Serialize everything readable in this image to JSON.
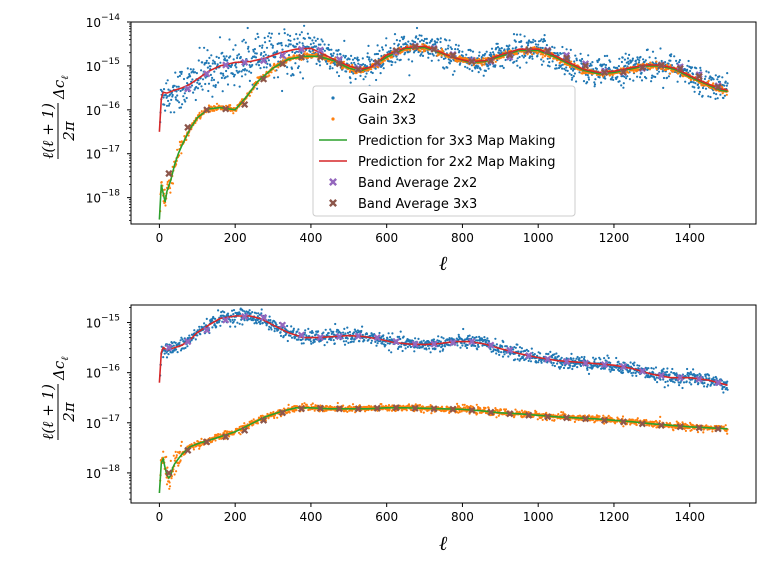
{
  "chart_data": [
    {
      "type": "scatter",
      "panel": "top",
      "xlabel": "ℓ",
      "ylabel": "ℓ(ℓ+1)/2π Δc_ℓ",
      "xlim": [
        -75,
        1575
      ],
      "ylim_log10": [
        -18.6,
        -14
      ],
      "xticks": [
        0,
        200,
        400,
        600,
        800,
        1000,
        1200,
        1400
      ],
      "xtick_labels": [
        "0",
        "200",
        "400",
        "600",
        "800",
        "1000",
        "1200",
        "1400"
      ],
      "yticks_log10": [
        -18,
        -17,
        -16,
        -15,
        -14
      ],
      "ytick_labels": [
        "10",
        "10",
        "10",
        "10",
        "10"
      ],
      "ytick_exponents": [
        "−18",
        "−17",
        "−16",
        "−15",
        "−14"
      ],
      "legend": {
        "position": "center",
        "entries": [
          {
            "label": "Gain 2x2",
            "marker": "dot",
            "color": "#1f77b4"
          },
          {
            "label": "Gain 3x3",
            "marker": "dot",
            "color": "#ff7f0e"
          },
          {
            "label": "Prediction for 3x3 Map Making",
            "marker": "line",
            "color": "#2ca02c"
          },
          {
            "label": "Prediction for 2x2 Map Making",
            "marker": "line",
            "color": "#d62728"
          },
          {
            "label": "Band Average 2x2",
            "marker": "x",
            "color": "#9467bd"
          },
          {
            "label": "Band Average 3x3",
            "marker": "x",
            "color": "#8c564b"
          }
        ]
      },
      "series": [
        {
          "name": "Prediction for 2x2 Map Making",
          "color": "#d62728",
          "x": [
            0,
            5,
            10,
            20,
            40,
            60,
            80,
            100,
            130,
            160,
            200,
            240,
            280,
            320,
            360,
            400,
            430,
            460,
            500,
            530,
            560,
            600,
            650,
            700,
            740,
            780,
            820,
            860,
            900,
            950,
            1000,
            1040,
            1080,
            1120,
            1160,
            1200,
            1240,
            1280,
            1320,
            1360,
            1400,
            1440,
            1480,
            1500
          ],
          "log10y": [
            -16.5,
            -15.75,
            -15.6,
            -15.62,
            -15.55,
            -15.5,
            -15.42,
            -15.3,
            -15.12,
            -15.0,
            -14.92,
            -14.9,
            -14.82,
            -14.7,
            -14.62,
            -14.6,
            -14.72,
            -14.85,
            -15.0,
            -15.08,
            -15.02,
            -14.75,
            -14.58,
            -14.55,
            -14.68,
            -14.82,
            -14.9,
            -14.88,
            -14.75,
            -14.62,
            -14.62,
            -14.75,
            -14.92,
            -15.08,
            -15.15,
            -15.12,
            -15.05,
            -14.98,
            -14.98,
            -15.05,
            -15.22,
            -15.38,
            -15.52,
            -15.55
          ]
        },
        {
          "name": "Prediction for 3x3 Map Making",
          "color": "#2ca02c",
          "x": [
            0,
            5,
            10,
            15,
            20,
            30,
            40,
            50,
            60,
            80,
            100,
            130,
            160,
            200,
            230,
            260,
            300,
            340,
            380,
            420,
            460,
            500,
            530,
            560,
            600,
            650,
            700,
            740,
            780,
            820,
            860,
            900,
            950,
            1000,
            1040,
            1080,
            1120,
            1160,
            1200,
            1240,
            1280,
            1320,
            1360,
            1400,
            1440,
            1480,
            1500
          ],
          "log10y": [
            -18.5,
            -17.7,
            -17.9,
            -18.1,
            -17.85,
            -17.6,
            -17.25,
            -17.0,
            -16.8,
            -16.45,
            -16.18,
            -15.98,
            -15.95,
            -16.0,
            -15.7,
            -15.35,
            -15.05,
            -14.85,
            -14.78,
            -14.78,
            -14.88,
            -15.05,
            -15.12,
            -15.02,
            -14.8,
            -14.6,
            -14.58,
            -14.7,
            -14.82,
            -14.92,
            -14.9,
            -14.78,
            -14.65,
            -14.65,
            -14.78,
            -14.95,
            -15.1,
            -15.18,
            -15.15,
            -15.08,
            -15.0,
            -15.0,
            -15.08,
            -15.25,
            -15.4,
            -15.55,
            -15.58
          ]
        },
        {
          "name": "Band Average 2x2",
          "color": "#9467bd",
          "x": [
            75,
            125,
            175,
            225,
            275,
            325,
            375,
            425,
            475,
            525,
            575,
            625,
            675,
            725,
            775,
            825,
            875,
            925,
            975,
            1025,
            1075,
            1125,
            1175,
            1225,
            1275,
            1325,
            1375,
            1425,
            1475
          ],
          "log10y": [
            -15.52,
            -15.18,
            -14.98,
            -14.92,
            -14.88,
            -14.76,
            -14.62,
            -14.64,
            -14.85,
            -15.05,
            -14.95,
            -14.68,
            -14.55,
            -14.6,
            -14.74,
            -14.87,
            -14.9,
            -14.8,
            -14.65,
            -14.64,
            -14.76,
            -14.95,
            -15.12,
            -15.15,
            -15.06,
            -14.98,
            -15.02,
            -15.2,
            -15.45
          ]
        },
        {
          "name": "Band Average 3x3",
          "color": "#8c564b",
          "x": [
            25,
            75,
            125,
            175,
            225,
            275,
            325,
            375,
            425,
            475,
            525,
            575,
            625,
            675,
            725,
            775,
            825,
            875,
            925,
            975,
            1025,
            1075,
            1125,
            1175,
            1225,
            1275,
            1325,
            1375,
            1425,
            1475
          ],
          "log10y": [
            -17.45,
            -16.4,
            -16.0,
            -15.98,
            -15.88,
            -15.3,
            -14.95,
            -14.8,
            -14.8,
            -14.95,
            -15.08,
            -14.92,
            -14.65,
            -14.56,
            -14.62,
            -14.76,
            -14.9,
            -14.88,
            -14.75,
            -14.64,
            -14.66,
            -14.82,
            -15.0,
            -15.15,
            -15.14,
            -15.04,
            -14.99,
            -15.06,
            -15.24,
            -15.48
          ]
        },
        {
          "name": "Gain 2x2",
          "color": "#1f77b4",
          "note": "noisy scatter (~1500 pts) scattered about the 2x2 prediction"
        },
        {
          "name": "Gain 3x3",
          "color": "#ff7f0e",
          "note": "scatter (~1500 pts) tracking the 3x3 prediction"
        }
      ]
    },
    {
      "type": "scatter",
      "panel": "bottom",
      "xlabel": "ℓ",
      "ylabel": "ℓ(ℓ+1)/2π Δc_ℓ",
      "xlim": [
        -75,
        1575
      ],
      "ylim_log10": [
        -18.6,
        -14.65
      ],
      "xticks": [
        0,
        200,
        400,
        600,
        800,
        1000,
        1200,
        1400
      ],
      "xtick_labels": [
        "0",
        "200",
        "400",
        "600",
        "800",
        "1000",
        "1200",
        "1400"
      ],
      "yticks_log10": [
        -18,
        -17,
        -16,
        -15
      ],
      "ytick_labels": [
        "10",
        "10",
        "10",
        "10"
      ],
      "ytick_exponents": [
        "−18",
        "−17",
        "−16",
        "−15"
      ],
      "series": [
        {
          "name": "Prediction for 2x2 Map Making",
          "color": "#d62728",
          "x": [
            0,
            5,
            10,
            20,
            40,
            60,
            80,
            100,
            130,
            160,
            200,
            240,
            270,
            300,
            340,
            380,
            420,
            460,
            500,
            540,
            580,
            620,
            660,
            700,
            740,
            780,
            820,
            860,
            900,
            950,
            1000,
            1050,
            1100,
            1150,
            1200,
            1250,
            1300,
            1350,
            1400,
            1450,
            1500
          ],
          "log10y": [
            -16.2,
            -15.6,
            -15.5,
            -15.55,
            -15.5,
            -15.45,
            -15.35,
            -15.2,
            -15.05,
            -14.92,
            -14.87,
            -14.87,
            -14.93,
            -15.05,
            -15.2,
            -15.3,
            -15.3,
            -15.28,
            -15.26,
            -15.28,
            -15.33,
            -15.4,
            -15.43,
            -15.44,
            -15.42,
            -15.38,
            -15.38,
            -15.43,
            -15.52,
            -15.62,
            -15.7,
            -15.76,
            -15.79,
            -15.82,
            -15.85,
            -15.92,
            -16.03,
            -16.1,
            -16.1,
            -16.15,
            -16.25
          ]
        },
        {
          "name": "Prediction for 3x3 Map Making",
          "color": "#2ca02c",
          "x": [
            0,
            5,
            10,
            15,
            20,
            25,
            30,
            35,
            40,
            50,
            60,
            80,
            100,
            130,
            160,
            200,
            240,
            280,
            320,
            360,
            400,
            450,
            500,
            550,
            600,
            650,
            700,
            750,
            800,
            850,
            900,
            950,
            1000,
            1050,
            1100,
            1150,
            1200,
            1250,
            1300,
            1350,
            1400,
            1450,
            1500
          ],
          "log10y": [
            -18.4,
            -17.8,
            -17.72,
            -17.9,
            -18.05,
            -18.1,
            -18.05,
            -17.9,
            -17.82,
            -17.72,
            -17.62,
            -17.48,
            -17.42,
            -17.35,
            -17.28,
            -17.18,
            -17.03,
            -16.88,
            -16.78,
            -16.7,
            -16.7,
            -16.72,
            -16.72,
            -16.72,
            -16.7,
            -16.7,
            -16.71,
            -16.72,
            -16.73,
            -16.76,
            -16.8,
            -16.82,
            -16.85,
            -16.88,
            -16.9,
            -16.92,
            -16.95,
            -16.98,
            -17.02,
            -17.05,
            -17.08,
            -17.1,
            -17.12
          ]
        },
        {
          "name": "Band Average 2x2",
          "color": "#9467bd",
          "x": [
            25,
            75,
            125,
            175,
            225,
            275,
            325,
            375,
            425,
            475,
            525,
            575,
            625,
            675,
            725,
            775,
            825,
            875,
            925,
            975,
            1025,
            1075,
            1125,
            1175,
            1225,
            1275,
            1325,
            1375,
            1425,
            1475
          ],
          "log10y": [
            -15.5,
            -15.38,
            -15.15,
            -14.95,
            -14.88,
            -14.9,
            -15.05,
            -15.25,
            -15.3,
            -15.28,
            -15.27,
            -15.3,
            -15.38,
            -15.43,
            -15.43,
            -15.4,
            -15.38,
            -15.45,
            -15.55,
            -15.66,
            -15.73,
            -15.78,
            -15.81,
            -15.84,
            -15.88,
            -15.97,
            -16.06,
            -16.1,
            -16.13,
            -16.2
          ]
        },
        {
          "name": "Band Average 3x3",
          "color": "#8c564b",
          "x": [
            25,
            75,
            125,
            175,
            225,
            275,
            325,
            375,
            425,
            475,
            525,
            575,
            625,
            675,
            725,
            775,
            825,
            875,
            925,
            975,
            1025,
            1075,
            1125,
            1175,
            1225,
            1275,
            1325,
            1375,
            1425,
            1475
          ],
          "log10y": [
            -18.0,
            -17.55,
            -17.38,
            -17.28,
            -17.15,
            -16.95,
            -16.8,
            -16.72,
            -16.71,
            -16.72,
            -16.72,
            -16.71,
            -16.7,
            -16.71,
            -16.72,
            -16.73,
            -16.75,
            -16.79,
            -16.82,
            -16.85,
            -16.88,
            -16.9,
            -16.92,
            -16.95,
            -16.98,
            -17.02,
            -17.05,
            -17.08,
            -17.1,
            -17.12
          ]
        },
        {
          "name": "Gain 2x2",
          "color": "#1f77b4",
          "note": "scatter (~1500 pts) about the 2x2 prediction"
        },
        {
          "name": "Gain 3x3",
          "color": "#ff7f0e",
          "note": "scatter (~1500 pts) about the 3x3 prediction"
        }
      ]
    }
  ]
}
